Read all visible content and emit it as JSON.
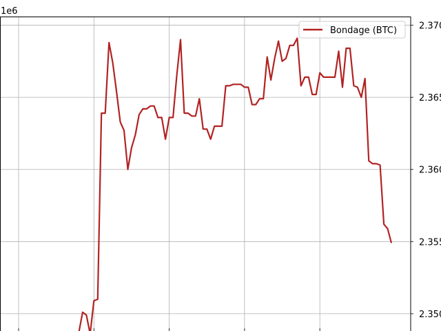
{
  "chart_data": {
    "type": "line",
    "offset_label": "1e6",
    "title": "",
    "xlabel": "",
    "ylabel": "",
    "grid": true,
    "legend_position": "top-right",
    "ylim": [
      2.3488,
      2.3706
    ],
    "ytick_values": [
      2.35,
      2.355,
      2.36,
      2.365,
      2.37
    ],
    "ytick_labels": [
      "2.350",
      "2.355",
      "2.360",
      "2.365",
      "2.370"
    ],
    "series": [
      {
        "name": "Bondage (BTC)",
        "color": "#b22222",
        "values": [
          2.3483,
          2.3483,
          2.3483,
          2.3483,
          2.3483,
          2.3483,
          2.3483,
          2.3483,
          2.3483,
          2.3483,
          2.3483,
          2.348,
          2.348,
          2.3483,
          2.3483,
          2.3487,
          2.3487,
          2.3501,
          2.3499,
          2.3486,
          2.3509,
          2.351,
          2.3639,
          2.3639,
          2.3688,
          2.3674,
          2.3654,
          2.3633,
          2.3627,
          2.36,
          2.3615,
          2.3624,
          2.3638,
          2.3642,
          2.3642,
          2.3644,
          2.3644,
          2.3636,
          2.3636,
          2.3621,
          2.3636,
          2.3636,
          2.3665,
          2.369,
          2.3639,
          2.3639,
          2.3637,
          2.3637,
          2.3649,
          2.3628,
          2.3628,
          2.3621,
          2.363,
          2.363,
          2.363,
          2.3658,
          2.3658,
          2.3659,
          2.3659,
          2.3659,
          2.3657,
          2.3657,
          2.3645,
          2.3645,
          2.3649,
          2.3649,
          2.3678,
          2.3662,
          2.3677,
          2.3689,
          2.3675,
          2.3677,
          2.3686,
          2.3686,
          2.3691,
          2.3658,
          2.3664,
          2.3664,
          2.3652,
          2.3652,
          2.3667,
          2.3664,
          2.3664,
          2.3664,
          2.3664,
          2.3682,
          2.3657,
          2.3684,
          2.3684,
          2.3658,
          2.3657,
          2.365,
          2.3663,
          2.3606,
          2.3604,
          2.3604,
          2.3603,
          2.3562,
          2.3559,
          2.3549
        ]
      }
    ]
  }
}
